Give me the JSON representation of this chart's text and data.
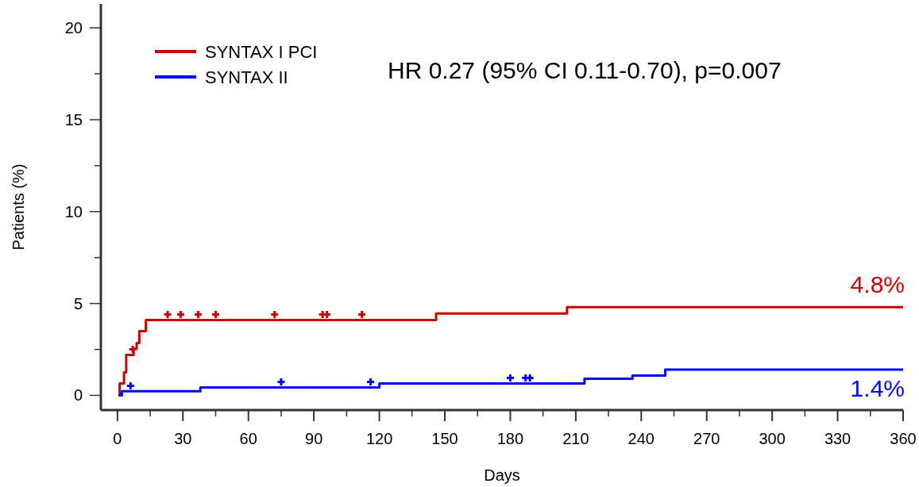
{
  "chart_data": {
    "type": "step",
    "xlabel": "Days",
    "ylabel": "Patients (%)",
    "xlim": [
      -7.6,
      360
    ],
    "ylim": [
      -0.8,
      21.3
    ],
    "xticks": [
      0,
      {
        "value": 15,
        "label": null
      },
      30,
      {
        "value": 45,
        "label": null
      },
      60,
      {
        "value": 75,
        "label": null
      },
      90,
      {
        "value": 105,
        "label": null
      },
      120,
      {
        "value": 135,
        "label": null
      },
      150,
      {
        "value": 165,
        "label": null
      },
      180,
      {
        "value": 195,
        "label": null
      },
      210,
      {
        "value": 225,
        "label": null
      },
      240,
      {
        "value": 255,
        "label": null
      },
      270,
      {
        "value": 285,
        "label": null
      },
      300,
      {
        "value": 315,
        "label": null
      },
      330,
      {
        "value": 345,
        "label": null
      },
      360
    ],
    "yticks": [
      0,
      {
        "value": 2.5,
        "label": null
      },
      5,
      {
        "value": 7.5,
        "label": null
      },
      10,
      {
        "value": 12.5,
        "label": null
      },
      15,
      {
        "value": 17.5,
        "label": null
      },
      20
    ],
    "grid": false,
    "legend": "top left",
    "line_style": "solid",
    "marker": "none",
    "annotations": [
      "HR 0.27 (95% CI 0.11-0.70), p=0.007",
      {
        "text": "4.8%",
        "x": 360,
        "y": 4.8
      },
      {
        "text": "1.4%",
        "x": 360,
        "y": 1.4
      }
    ],
    "series": [
      {
        "name": "SYNTAX I PCI",
        "color": "#cc0000",
        "x": [
          0.4,
          1,
          3,
          4,
          7.4,
          8.8,
          10,
          13,
          146,
          206,
          360
        ],
        "values": [
          0,
          0.65,
          1.25,
          2.2,
          2.55,
          2.85,
          3.5,
          4.1,
          4.45,
          4.8,
          4.8
        ]
      },
      {
        "name": "SYNTAX II",
        "color": "#0000ff",
        "x": [
          0.4,
          2,
          38,
          120,
          214,
          236,
          251,
          360
        ],
        "values": [
          0,
          0.22,
          0.43,
          0.65,
          0.9,
          1.08,
          1.4,
          1.4
        ]
      },
      {
        "type": "scatter",
        "marker": "cross",
        "color": "#cc0000",
        "x": [
          7,
          23,
          29,
          37,
          45,
          72,
          94,
          96,
          112
        ],
        "values": [
          2.5,
          4.4,
          4.4,
          4.4,
          4.4,
          4.4,
          4.4,
          4.4,
          4.4
        ]
      },
      {
        "type": "scatter",
        "marker": "cross",
        "color": "#0000ff",
        "x": [
          6,
          75,
          116,
          180,
          187,
          189
        ],
        "values": [
          0.52,
          0.73,
          0.73,
          0.95,
          0.95,
          0.95
        ]
      }
    ]
  }
}
